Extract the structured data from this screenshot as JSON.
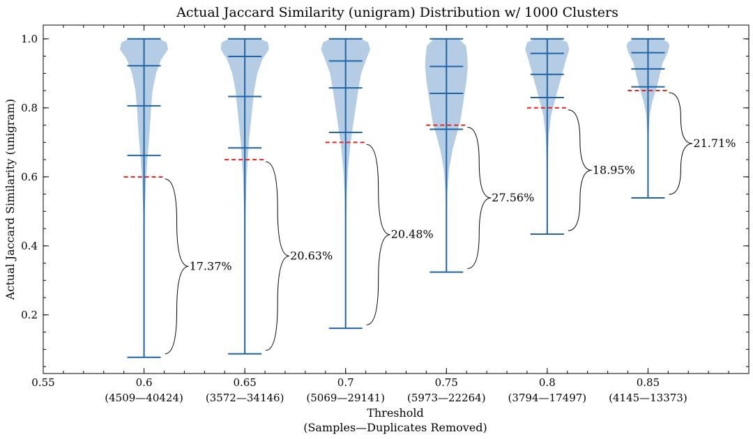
{
  "chart_data": {
    "type": "violin",
    "title": "Actual Jaccard Similarity (unigram) Distribution w/ 1000 Clusters",
    "xlabel": [
      "Threshold",
      "(Samples—Duplicates Removed)"
    ],
    "ylabel": "Actual Jaccard Similarity (unigram)",
    "xlim": [
      0.55,
      0.9
    ],
    "ylim": [
      0.03,
      1.04
    ],
    "x_ticks": [
      {
        "value": 0.55,
        "label": "0.55",
        "sub": ""
      },
      {
        "value": 0.6,
        "label": "0.6",
        "sub": "(4509—40424)"
      },
      {
        "value": 0.65,
        "label": "0.65",
        "sub": "(3572—34146)"
      },
      {
        "value": 0.7,
        "label": "0.7",
        "sub": "(5069—29141)"
      },
      {
        "value": 0.75,
        "label": "0.75",
        "sub": "(5973—22264)"
      },
      {
        "value": 0.8,
        "label": "0.8",
        "sub": "(3794—17497)"
      },
      {
        "value": 0.85,
        "label": "0.85",
        "sub": "(4145—13373)"
      }
    ],
    "y_ticks": [
      {
        "value": 0.2,
        "label": "0.2"
      },
      {
        "value": 0.4,
        "label": "0.4"
      },
      {
        "value": 0.6,
        "label": "0.6"
      },
      {
        "value": 0.8,
        "label": "0.8"
      },
      {
        "value": 1.0,
        "label": "1.0"
      }
    ],
    "grid": false,
    "violins": [
      {
        "threshold": 0.6,
        "min": 0.077,
        "q1": 0.662,
        "median": 0.806,
        "q3": 0.922,
        "max": 1.0,
        "percent_below_threshold": "17.37%",
        "density": [
          [
            0.077,
            0.002
          ],
          [
            0.25,
            0.006
          ],
          [
            0.4,
            0.012
          ],
          [
            0.5,
            0.03
          ],
          [
            0.58,
            0.07
          ],
          [
            0.65,
            0.13
          ],
          [
            0.7,
            0.19
          ],
          [
            0.75,
            0.24
          ],
          [
            0.8,
            0.28
          ],
          [
            0.85,
            0.34
          ],
          [
            0.9,
            0.48
          ],
          [
            0.94,
            0.68
          ],
          [
            0.97,
            0.96
          ],
          [
            0.99,
            0.9
          ],
          [
            1.0,
            0.6
          ]
        ]
      },
      {
        "threshold": 0.65,
        "min": 0.087,
        "q1": 0.684,
        "median": 0.833,
        "q3": 0.949,
        "max": 1.0,
        "percent_below_threshold": "20.63%",
        "density": [
          [
            0.087,
            0.002
          ],
          [
            0.25,
            0.006
          ],
          [
            0.4,
            0.012
          ],
          [
            0.5,
            0.03
          ],
          [
            0.6,
            0.07
          ],
          [
            0.7,
            0.16
          ],
          [
            0.75,
            0.23
          ],
          [
            0.8,
            0.3
          ],
          [
            0.85,
            0.37
          ],
          [
            0.9,
            0.5
          ],
          [
            0.94,
            0.7
          ],
          [
            0.97,
            0.96
          ],
          [
            0.99,
            0.92
          ],
          [
            1.0,
            0.62
          ]
        ]
      },
      {
        "threshold": 0.7,
        "min": 0.161,
        "q1": 0.729,
        "median": 0.858,
        "q3": 0.936,
        "max": 1.0,
        "percent_below_threshold": "20.48%",
        "density": [
          [
            0.161,
            0.002
          ],
          [
            0.3,
            0.007
          ],
          [
            0.45,
            0.015
          ],
          [
            0.55,
            0.04
          ],
          [
            0.62,
            0.09
          ],
          [
            0.7,
            0.2
          ],
          [
            0.75,
            0.3
          ],
          [
            0.8,
            0.4
          ],
          [
            0.85,
            0.5
          ],
          [
            0.9,
            0.62
          ],
          [
            0.94,
            0.82
          ],
          [
            0.97,
            0.98
          ],
          [
            0.99,
            0.9
          ],
          [
            1.0,
            0.6
          ]
        ]
      },
      {
        "threshold": 0.75,
        "min": 0.324,
        "q1": 0.738,
        "median": 0.842,
        "q3": 0.92,
        "max": 1.0,
        "percent_below_threshold": "27.56%",
        "density": [
          [
            0.324,
            0.002
          ],
          [
            0.45,
            0.006
          ],
          [
            0.55,
            0.03
          ],
          [
            0.62,
            0.1
          ],
          [
            0.68,
            0.25
          ],
          [
            0.72,
            0.4
          ],
          [
            0.76,
            0.55
          ],
          [
            0.8,
            0.64
          ],
          [
            0.84,
            0.72
          ],
          [
            0.88,
            0.8
          ],
          [
            0.92,
            0.85
          ],
          [
            0.95,
            0.83
          ],
          [
            0.98,
            0.78
          ],
          [
            1.0,
            0.5
          ]
        ]
      },
      {
        "threshold": 0.8,
        "min": 0.434,
        "q1": 0.83,
        "median": 0.897,
        "q3": 0.958,
        "max": 1.0,
        "percent_below_threshold": "18.95%",
        "density": [
          [
            0.434,
            0.002
          ],
          [
            0.55,
            0.006
          ],
          [
            0.65,
            0.02
          ],
          [
            0.72,
            0.06
          ],
          [
            0.78,
            0.16
          ],
          [
            0.82,
            0.3
          ],
          [
            0.86,
            0.45
          ],
          [
            0.9,
            0.6
          ],
          [
            0.94,
            0.75
          ],
          [
            0.97,
            0.88
          ],
          [
            0.99,
            0.8
          ],
          [
            1.0,
            0.5
          ]
        ]
      },
      {
        "threshold": 0.85,
        "min": 0.539,
        "q1": 0.861,
        "median": 0.913,
        "q3": 0.96,
        "max": 1.0,
        "percent_below_threshold": "21.71%",
        "density": [
          [
            0.539,
            0.002
          ],
          [
            0.65,
            0.006
          ],
          [
            0.72,
            0.02
          ],
          [
            0.78,
            0.07
          ],
          [
            0.82,
            0.18
          ],
          [
            0.86,
            0.35
          ],
          [
            0.9,
            0.48
          ],
          [
            0.93,
            0.58
          ],
          [
            0.96,
            0.78
          ],
          [
            0.98,
            0.86
          ],
          [
            0.99,
            0.8
          ],
          [
            1.0,
            0.55
          ]
        ]
      }
    ],
    "colors": {
      "violin_fill": "#b4cde4",
      "violin_lines": "#1f63a3",
      "threshold_line": "#e8231f"
    }
  }
}
